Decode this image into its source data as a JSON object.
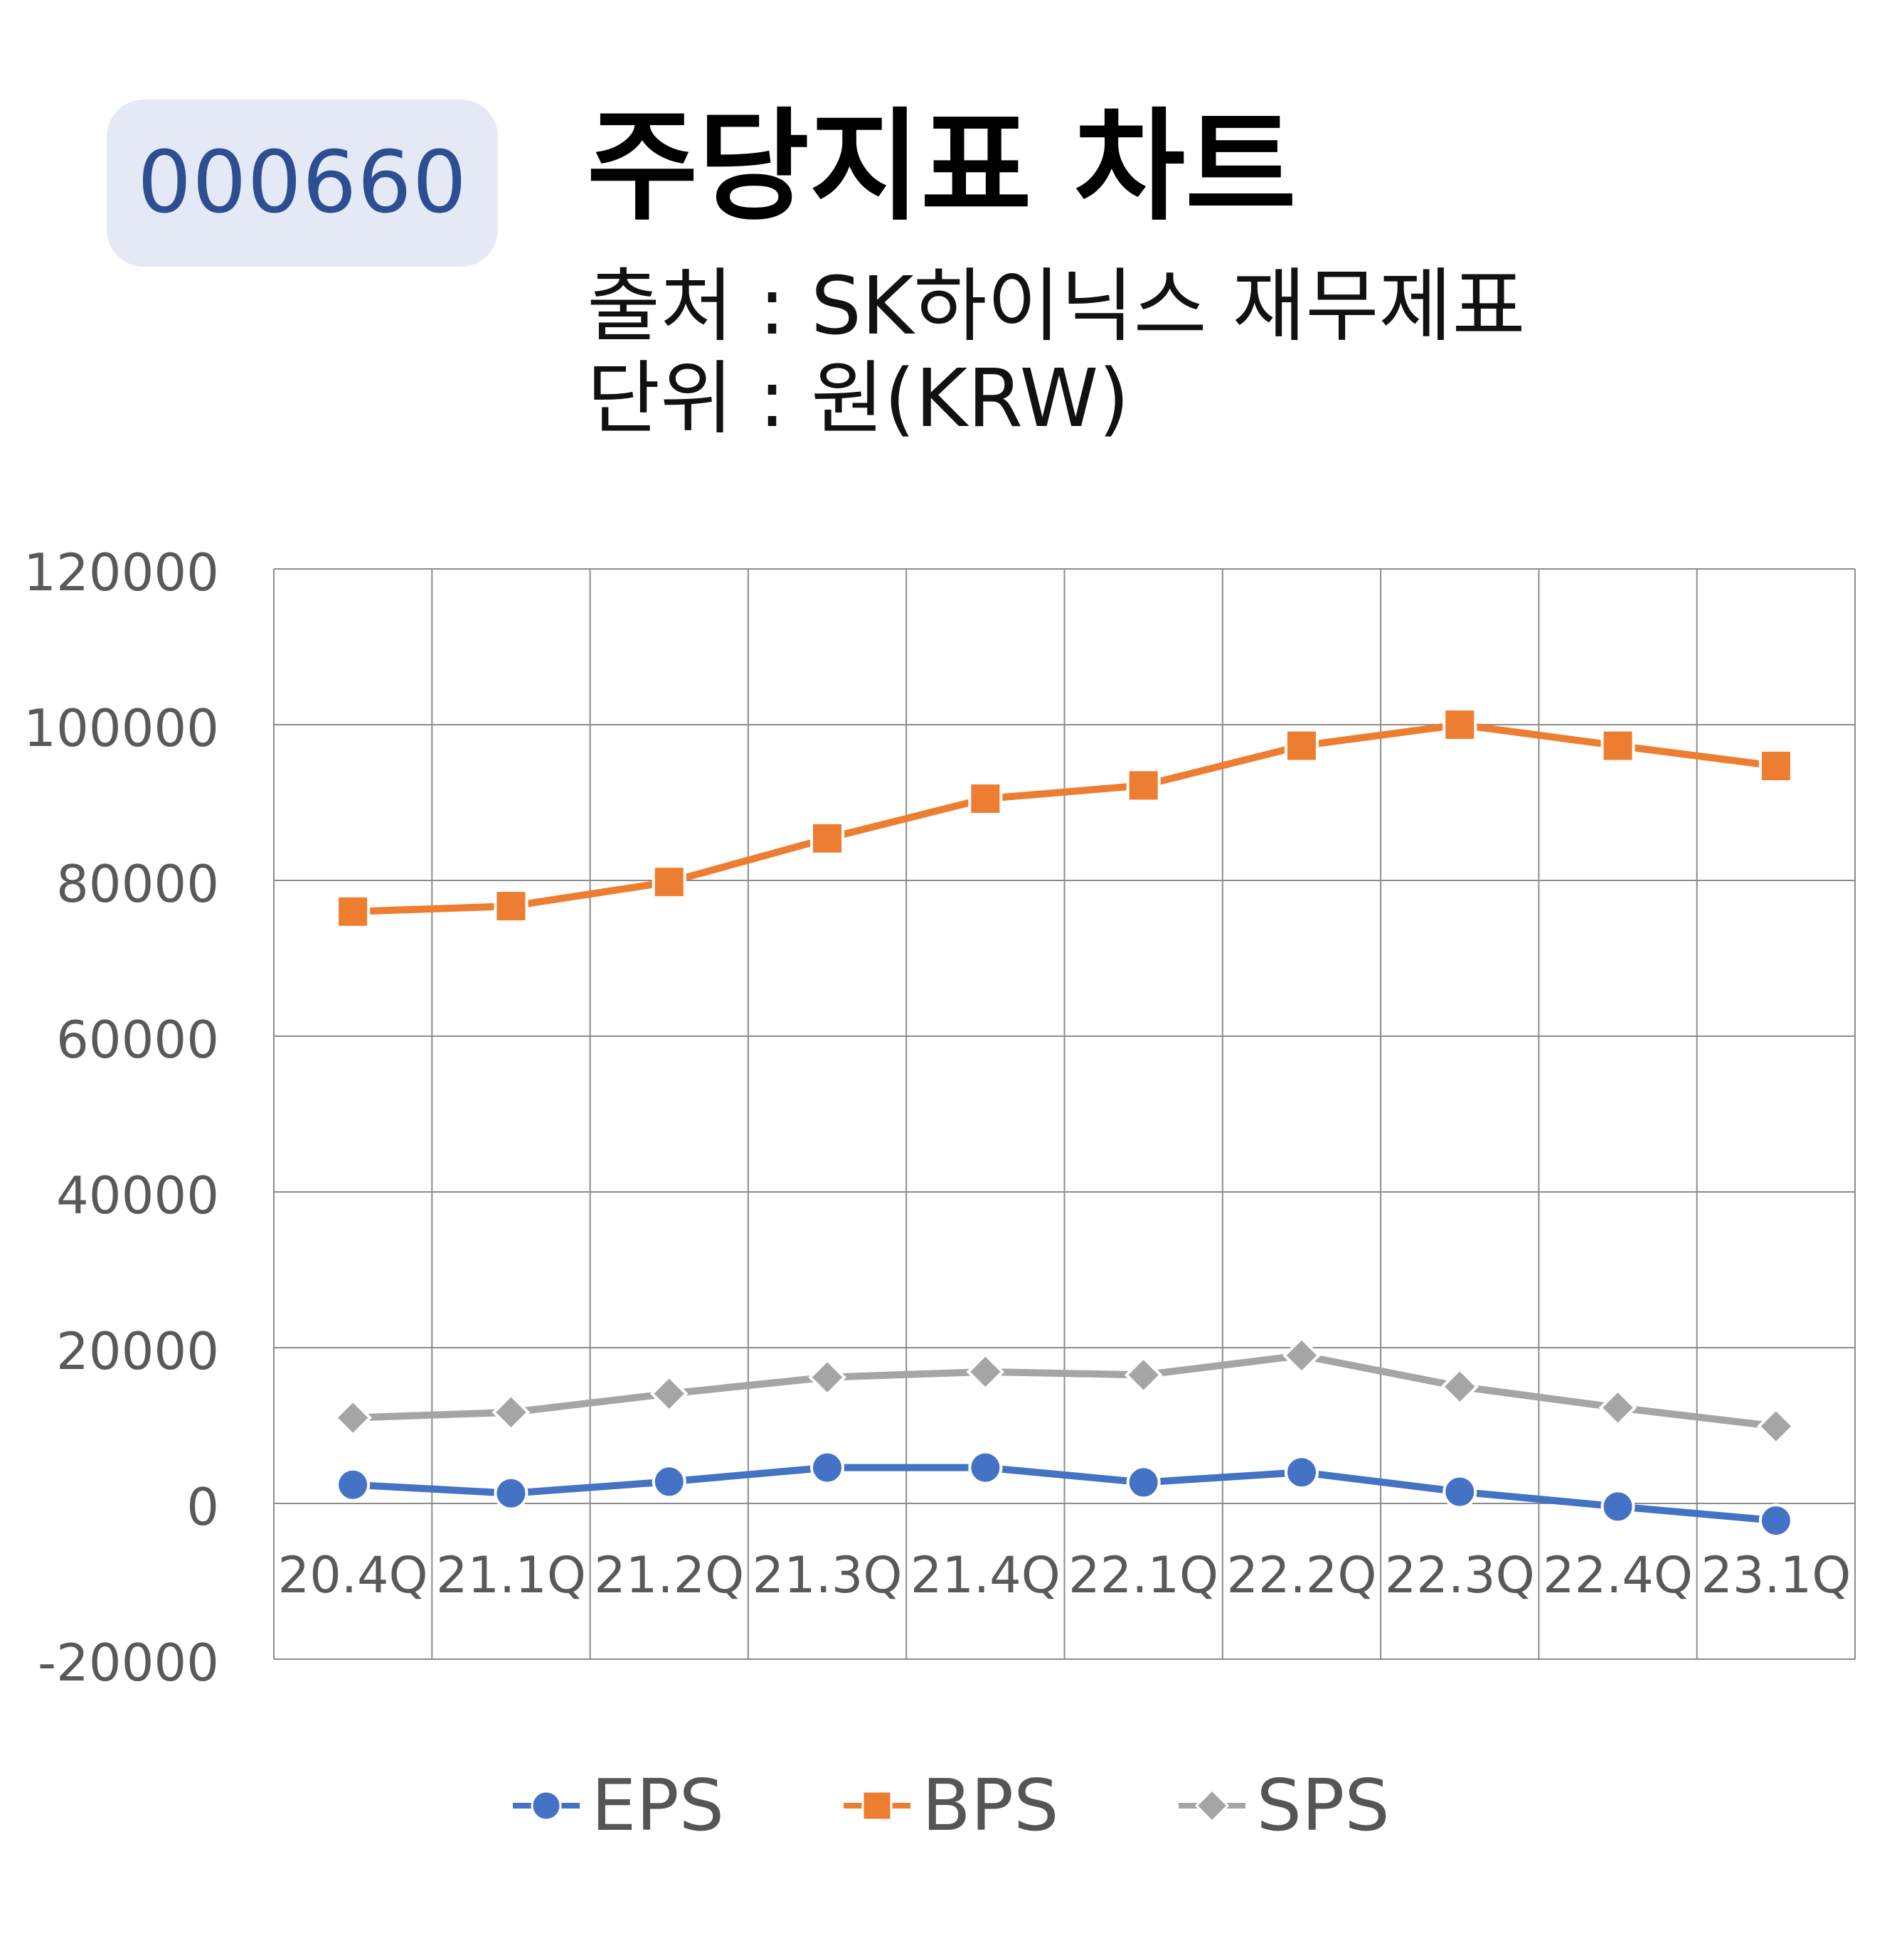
{
  "header": {
    "ticker": "000660",
    "title": "주당지표 차트",
    "source": "출처 : SK하이닉스 재무제표",
    "unit": "단위 : 원(KRW)"
  },
  "chart_data": {
    "type": "line",
    "categories": [
      "20.4Q",
      "21.1Q",
      "21.2Q",
      "21.3Q",
      "21.4Q",
      "22.1Q",
      "22.2Q",
      "22.3Q",
      "22.4Q",
      "23.1Q"
    ],
    "ylim": [
      -20000,
      120000
    ],
    "yticks": [
      -20000,
      0,
      20000,
      40000,
      60000,
      80000,
      100000,
      120000
    ],
    "grid": true,
    "legend_position": "bottom",
    "series": [
      {
        "name": "EPS",
        "marker": "circle",
        "color": "#4472c4",
        "values": [
          2400,
          1300,
          2800,
          4600,
          4600,
          2700,
          4000,
          1500,
          -400,
          -2200
        ]
      },
      {
        "name": "BPS",
        "marker": "square",
        "color": "#ed7d31",
        "values": [
          76000,
          76700,
          79800,
          85400,
          90500,
          92200,
          97300,
          100000,
          97300,
          94700
        ]
      },
      {
        "name": "SPS",
        "marker": "diamond",
        "color": "#a5a5a5",
        "values": [
          11000,
          11700,
          14100,
          16200,
          16900,
          16500,
          19000,
          15000,
          12300,
          9900
        ]
      }
    ]
  }
}
